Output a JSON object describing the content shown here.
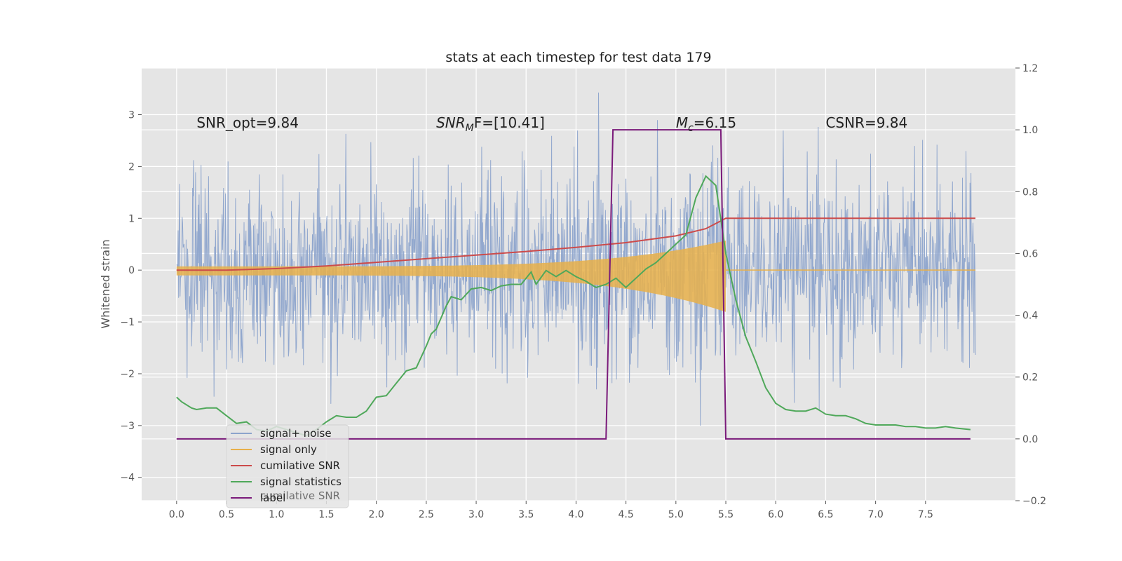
{
  "chart_data": {
    "type": "line",
    "title": "stats at each timestep for test data 179",
    "ylabel": "Whitened strain",
    "xlabel": "",
    "xlim": [
      -0.35,
      8.4
    ],
    "ylim": [
      -4.45,
      3.9
    ],
    "y2lim": [
      -0.2,
      1.2
    ],
    "xticks": [
      0.0,
      0.5,
      1.0,
      1.5,
      2.0,
      2.5,
      3.0,
      3.5,
      4.0,
      4.5,
      5.0,
      5.5,
      6.0,
      6.5,
      7.0,
      7.5
    ],
    "xtick_labels": [
      "0.0",
      "0.5",
      "1.0",
      "1.5",
      "2.0",
      "2.5",
      "3.0",
      "3.5",
      "4.0",
      "4.5",
      "5.0",
      "5.5",
      "6.0",
      "6.5",
      "7.0",
      "7.5"
    ],
    "yticks": [
      -4,
      -3,
      -2,
      -1,
      0,
      1,
      2,
      3
    ],
    "ytick_labels": [
      "−4",
      "−3",
      "−2",
      "−1",
      "0",
      "1",
      "2",
      "3"
    ],
    "y2ticks": [
      -0.2,
      0.0,
      0.2,
      0.4,
      0.6,
      0.8,
      1.0,
      1.2
    ],
    "y2tick_labels": [
      "−0.2",
      "0.0",
      "0.2",
      "0.4",
      "0.6",
      "0.8",
      "1.0",
      "1.2"
    ],
    "grid": true,
    "legend_position": "bottom-left",
    "annotations": [
      {
        "text": "SNR_opt=9.84",
        "x": 0.2,
        "y": 2.75
      },
      {
        "text": "SNR",
        "sub": "M",
        "tail": "F=[10.41]",
        "italic": true,
        "x": 2.6,
        "y": 2.75
      },
      {
        "text": "M",
        "sub": "c",
        "tail": "=6.15",
        "italic": true,
        "x": 5.0,
        "y": 2.75
      },
      {
        "text": "CSNR=9.84",
        "x": 6.5,
        "y": 2.75
      }
    ],
    "series": [
      {
        "name": "signal+ noise",
        "color": "#8da4cc",
        "axis": "left",
        "t_end": 8.0,
        "std": 0.9
      },
      {
        "name": "signal only",
        "color": "#e8b04a",
        "axis": "left",
        "merger": 5.5,
        "peak_amp": 0.95
      },
      {
        "name": "cumilative SNR",
        "color": "#cc4b4b",
        "axis": "left",
        "x": [
          0.0,
          0.5,
          1.0,
          1.5,
          2.0,
          2.5,
          3.0,
          3.5,
          4.0,
          4.5,
          5.0,
          5.3,
          5.5,
          6.0,
          7.0,
          8.0
        ],
        "y": [
          0.0,
          0.0,
          0.03,
          0.08,
          0.15,
          0.22,
          0.29,
          0.36,
          0.44,
          0.53,
          0.66,
          0.8,
          1.0,
          1.0,
          1.0,
          1.0
        ]
      },
      {
        "name": "signal statistics",
        "color": "#4fa85a",
        "axis": "right",
        "x": [
          0.0,
          0.05,
          0.15,
          0.2,
          0.3,
          0.4,
          0.5,
          0.6,
          0.7,
          0.8,
          0.9,
          1.0,
          1.1,
          1.2,
          1.3,
          1.4,
          1.5,
          1.6,
          1.7,
          1.8,
          1.9,
          2.0,
          2.1,
          2.2,
          2.3,
          2.4,
          2.5,
          2.55,
          2.6,
          2.7,
          2.75,
          2.85,
          2.95,
          3.05,
          3.15,
          3.25,
          3.35,
          3.45,
          3.55,
          3.6,
          3.7,
          3.8,
          3.9,
          4.0,
          4.1,
          4.2,
          4.3,
          4.4,
          4.5,
          4.6,
          4.7,
          4.8,
          4.9,
          5.0,
          5.1,
          5.2,
          5.3,
          5.4,
          5.5,
          5.6,
          5.7,
          5.8,
          5.9,
          6.0,
          6.1,
          6.2,
          6.3,
          6.4,
          6.5,
          6.6,
          6.7,
          6.8,
          6.9,
          7.0,
          7.1,
          7.2,
          7.3,
          7.4,
          7.5,
          7.6,
          7.7,
          7.8,
          7.95
        ],
        "y": [
          0.135,
          0.12,
          0.1,
          0.095,
          0.1,
          0.1,
          0.075,
          0.05,
          0.055,
          0.03,
          0.025,
          0.04,
          0.03,
          0.02,
          0.01,
          0.03,
          0.055,
          0.075,
          0.07,
          0.07,
          0.09,
          0.135,
          0.14,
          0.18,
          0.22,
          0.23,
          0.3,
          0.34,
          0.355,
          0.43,
          0.46,
          0.45,
          0.485,
          0.49,
          0.48,
          0.495,
          0.5,
          0.5,
          0.54,
          0.5,
          0.545,
          0.525,
          0.545,
          0.525,
          0.51,
          0.49,
          0.5,
          0.52,
          0.49,
          0.52,
          0.55,
          0.57,
          0.6,
          0.63,
          0.66,
          0.78,
          0.85,
          0.82,
          0.6,
          0.45,
          0.33,
          0.25,
          0.165,
          0.115,
          0.095,
          0.09,
          0.09,
          0.1,
          0.08,
          0.075,
          0.075,
          0.065,
          0.05,
          0.045,
          0.045,
          0.045,
          0.04,
          0.04,
          0.035,
          0.035,
          0.04,
          0.035,
          0.03
        ]
      },
      {
        "name": "label",
        "color": "#7a1a7a",
        "axis": "right",
        "x": [
          0.0,
          4.3,
          4.37,
          5.45,
          5.5,
          7.95
        ],
        "y": [
          0.0,
          0.0,
          1.0,
          1.0,
          0.0,
          0.0
        ]
      }
    ],
    "legend": [
      "signal+ noise",
      "signal only",
      "cumilative SNR",
      "signal statistics",
      "label"
    ],
    "legend_ghost_text": "cumilative SNR"
  }
}
